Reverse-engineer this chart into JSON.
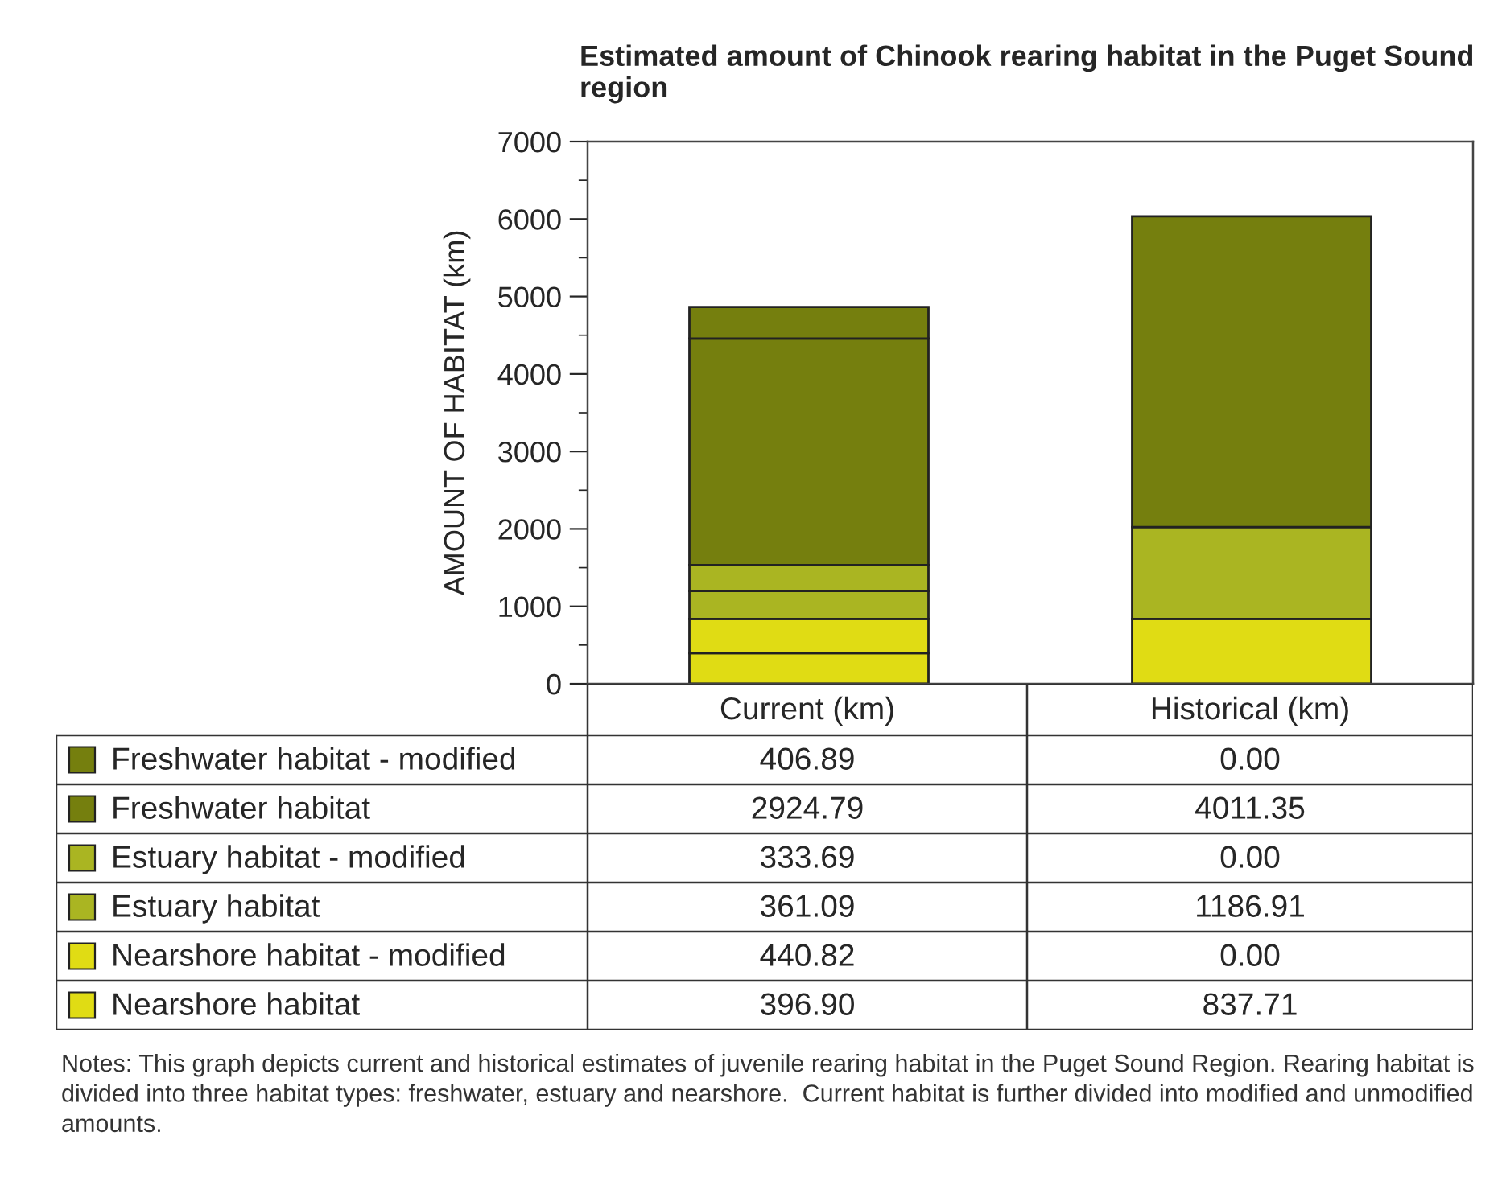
{
  "chart_data": {
    "type": "bar",
    "title": "Estimated amount of Chinook rearing habitat in the Puget Sound region",
    "ylabel": "AMOUNT OF HABITAT (km)",
    "categories": [
      "Current (km)",
      "Historical (km)"
    ],
    "stacked": true,
    "series": [
      {
        "name": "Nearshore habitat",
        "color": "#e0dc14",
        "values": [
          396.9,
          837.71
        ],
        "value_labels": [
          "396.90",
          "837.71"
        ]
      },
      {
        "name": "Nearshore habitat - modified",
        "color": "#e0dc14",
        "values": [
          440.82,
          0.0
        ],
        "value_labels": [
          "440.82",
          "0.00"
        ]
      },
      {
        "name": "Estuary habitat",
        "color": "#aab522",
        "values": [
          361.09,
          1186.91
        ],
        "value_labels": [
          "361.09",
          "1186.91"
        ]
      },
      {
        "name": "Estuary habitat - modified",
        "color": "#aab522",
        "values": [
          333.69,
          0.0
        ],
        "value_labels": [
          "333.69",
          "0.00"
        ]
      },
      {
        "name": "Freshwater habitat",
        "color": "#757f0e",
        "values": [
          2924.79,
          4011.35
        ],
        "value_labels": [
          "2924.79",
          "4011.35"
        ]
      },
      {
        "name": "Freshwater habitat - modified",
        "color": "#757f0e",
        "values": [
          406.89,
          0.0
        ],
        "value_labels": [
          "406.89",
          "0.00"
        ]
      }
    ],
    "ylim": [
      0,
      7000
    ],
    "yticks": [
      0,
      1000,
      2000,
      3000,
      4000,
      5000,
      6000,
      7000
    ],
    "grid": false,
    "legend": "bottom left",
    "annotations": [
      "Notes: This graph depicts current and historical estimates of juvenile rearing habitat in the Puget Sound Region. Rearing habitat is divided into three habitat types: freshwater, estuary and nearshore.  Current habitat is further divided into modified and unmodified amounts."
    ]
  }
}
